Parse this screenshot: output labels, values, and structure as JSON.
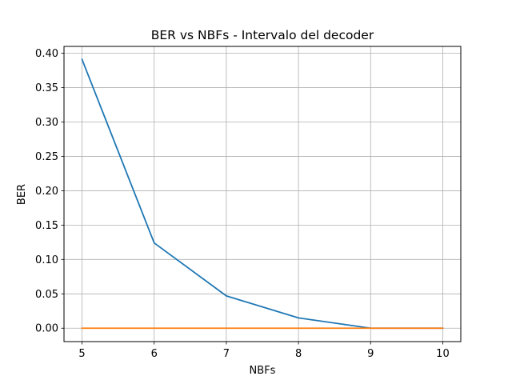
{
  "chart_data": {
    "type": "line",
    "title": "BER vs NBFs - Intervalo del decoder",
    "xlabel": "NBFs",
    "ylabel": "BER",
    "x": [
      5,
      6,
      7,
      8,
      9,
      10
    ],
    "xlim": [
      4.75,
      10.25
    ],
    "ylim": [
      -0.0195,
      0.41
    ],
    "xticks": [
      5,
      6,
      7,
      8,
      9,
      10
    ],
    "xtick_labels": [
      "5",
      "6",
      "7",
      "8",
      "9",
      "10"
    ],
    "yticks": [
      0.0,
      0.05,
      0.1,
      0.15,
      0.2,
      0.25,
      0.3,
      0.35,
      0.4
    ],
    "ytick_labels": [
      "0.00",
      "0.05",
      "0.10",
      "0.15",
      "0.20",
      "0.25",
      "0.30",
      "0.35",
      "0.40"
    ],
    "grid": true,
    "series": [
      {
        "color": "#1f77b4",
        "values": [
          0.391,
          0.124,
          0.047,
          0.015,
          0.0,
          0.0
        ]
      },
      {
        "color": "#ff7f0e",
        "values": [
          0.0,
          0.0,
          0.0,
          0.0,
          0.0,
          0.0
        ]
      }
    ]
  }
}
